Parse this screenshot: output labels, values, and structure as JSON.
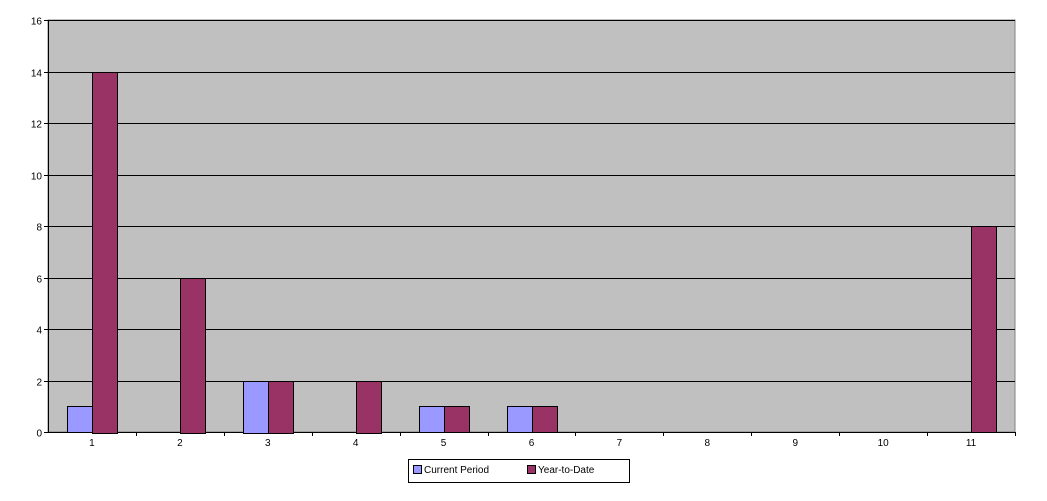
{
  "chart_data": {
    "type": "bar",
    "categories": [
      "1",
      "2",
      "3",
      "4",
      "5",
      "6",
      "7",
      "8",
      "9",
      "10",
      "11"
    ],
    "series": [
      {
        "name": "Current Period",
        "values": [
          1,
          0,
          2,
          0,
          1,
          1,
          0,
          0,
          0,
          0,
          0
        ],
        "color": "#9999ff"
      },
      {
        "name": "Year-to-Date",
        "values": [
          14,
          6,
          2,
          2,
          1,
          1,
          0,
          0,
          0,
          0,
          8
        ],
        "color": "#993366"
      }
    ],
    "yticks": [
      "0",
      "2",
      "4",
      "6",
      "8",
      "10",
      "12",
      "14",
      "16"
    ],
    "ylim": [
      0,
      16
    ],
    "title": "",
    "xlabel": "",
    "ylabel": "",
    "grid": true,
    "plot_background": "#c0c0c0",
    "legend_position": "bottom"
  }
}
